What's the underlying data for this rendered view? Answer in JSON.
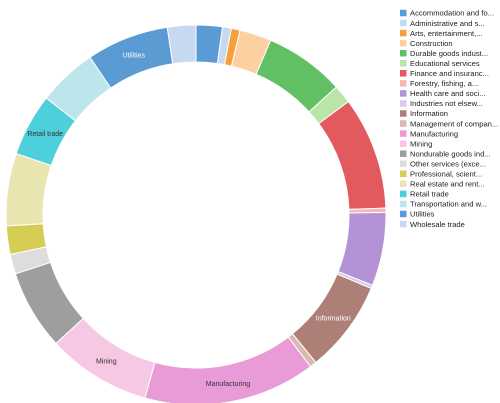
{
  "chart_data": {
    "type": "pie",
    "donut": true,
    "legend_position": "top-right",
    "categories": [
      "Accommodation and fo...",
      "Administrative and s...",
      "Arts, entertainment,...",
      "Construction",
      "Durable goods indust...",
      "Educational services",
      "Finance and insuranc...",
      "Forestry, fishing, a...",
      "Health care and soci...",
      "Industries not elsew...",
      "Information",
      "Management of compan...",
      "Manufacturing",
      "Mining",
      "Nondurable goods ind...",
      "Other services (exce...",
      "Professional, scient...",
      "Real estate and rent...",
      "Retail trade",
      "Transportation and w...",
      "Utilities",
      "Wholesale trade"
    ],
    "colors": [
      "#5a9bd4",
      "#c6d9f1",
      "#f5a03a",
      "#fdd0a2",
      "#62c064",
      "#b9e6a8",
      "#e25a5e",
      "#f8b6b6",
      "#b393d6",
      "#d6cbe8",
      "#ad7f76",
      "#d9b9b2",
      "#e99bd8",
      "#f6c8e3",
      "#9e9e9e",
      "#dddddd",
      "#d6cd54",
      "#e9e5b0",
      "#4ecfdc",
      "#bde5ec",
      "#5a9bd4",
      "#c6d9f1"
    ],
    "slices": [
      {
        "name": "Accommodation and fo...",
        "value": 2.4,
        "color": "#5a9bd4",
        "label": ""
      },
      {
        "name": "Administrative and s...",
        "value": 0.8,
        "color": "#c6d9f1",
        "label": ""
      },
      {
        "name": "Arts, entertainment,...",
        "value": 0.8,
        "color": "#f5a03a",
        "label": ""
      },
      {
        "name": "Construction",
        "value": 2.9,
        "color": "#fdd0a2",
        "label": ""
      },
      {
        "name": "Durable goods indust...",
        "value": 7.3,
        "color": "#62c064",
        "label": ""
      },
      {
        "name": "Educational services",
        "value": 1.7,
        "color": "#b9e6a8",
        "label": ""
      },
      {
        "name": "Finance and insuranc...",
        "value": 10.3,
        "color": "#e25a5e",
        "label": ""
      },
      {
        "name": "Forestry, fishing, a...",
        "value": 0.4,
        "color": "#f8b6b6",
        "label": ""
      },
      {
        "name": "Health care and soci...",
        "value": 6.7,
        "color": "#b393d6",
        "label": ""
      },
      {
        "name": "Industries not elsew...",
        "value": 0.3,
        "color": "#d6cbe8",
        "label": ""
      },
      {
        "name": "Information",
        "value": 8.4,
        "color": "#ad7f76",
        "label": "Information"
      },
      {
        "name": "Management of compan...",
        "value": 0.6,
        "color": "#d9b9b2",
        "label": ""
      },
      {
        "name": "Manufacturing",
        "value": 15.7,
        "color": "#e99bd8",
        "label": "Manufacturing"
      },
      {
        "name": "Mining",
        "value": 9.5,
        "color": "#f6c8e3",
        "label": "Mining"
      },
      {
        "name": "Nondurable goods ind...",
        "value": 7.3,
        "color": "#9e9e9e",
        "label": ""
      },
      {
        "name": "Other services (exce...",
        "value": 1.8,
        "color": "#dddddd",
        "label": ""
      },
      {
        "name": "Professional, scient...",
        "value": 2.6,
        "color": "#d6cd54",
        "label": ""
      },
      {
        "name": "Real estate and rent...",
        "value": 6.6,
        "color": "#e9e5b0",
        "label": ""
      },
      {
        "name": "Retail trade",
        "value": 5.7,
        "color": "#4ecfdc",
        "label": "Retail trade"
      },
      {
        "name": "Transportation and w...",
        "value": 5.4,
        "color": "#bde5ec",
        "label": ""
      },
      {
        "name": "Utilities",
        "value": 7.5,
        "color": "#5a9bd4",
        "label": "Utilities"
      },
      {
        "name": "Wholesale trade",
        "value": 2.6,
        "color": "#c6d9f1",
        "label": ""
      }
    ]
  }
}
